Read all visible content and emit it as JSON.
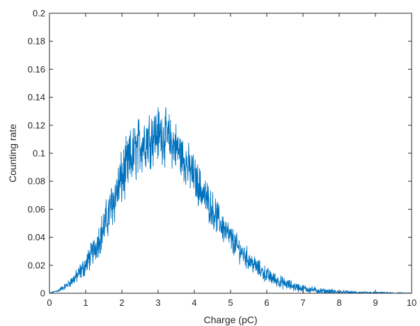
{
  "colors": {
    "series": "#0072bd",
    "axis": "#262626",
    "background": "#ffffff"
  },
  "chart_data": {
    "type": "line",
    "title": "",
    "xlabel": "Charge (pC)",
    "ylabel": "Counting rate",
    "xlim": [
      0,
      10
    ],
    "ylim": [
      0,
      0.2
    ],
    "xticks": [
      0,
      1,
      2,
      3,
      4,
      5,
      6,
      7,
      8,
      9,
      10
    ],
    "yticks": [
      0,
      0.02,
      0.04,
      0.06,
      0.08,
      0.1,
      0.12,
      0.14,
      0.16,
      0.18,
      0.2
    ],
    "xtick_labels": [
      "0",
      "1",
      "2",
      "3",
      "4",
      "5",
      "6",
      "7",
      "8",
      "9",
      "10"
    ],
    "ytick_labels": [
      "0",
      "0.02",
      "0.04",
      "0.06",
      "0.08",
      "0.1",
      "0.12",
      "0.14",
      "0.16",
      "0.18",
      "0.2"
    ],
    "grid": false,
    "box": true,
    "series": [
      {
        "x": [
          0,
          0.25,
          0.5,
          0.75,
          1,
          1.25,
          1.5,
          1.75,
          2,
          2.25,
          2.5,
          2.75,
          3,
          3.25,
          3.5,
          3.75,
          4,
          4.25,
          4.5,
          4.75,
          5,
          5.25,
          5.5,
          5.75,
          6,
          6.25,
          6.5,
          6.75,
          7,
          7.5,
          8,
          8.5,
          9,
          9.5,
          10
        ],
        "y": [
          0,
          0.002,
          0.006,
          0.012,
          0.02,
          0.032,
          0.047,
          0.065,
          0.082,
          0.096,
          0.106,
          0.112,
          0.114,
          0.111,
          0.104,
          0.094,
          0.083,
          0.071,
          0.06,
          0.049,
          0.039,
          0.031,
          0.024,
          0.018,
          0.013,
          0.0095,
          0.0068,
          0.0048,
          0.0034,
          0.0017,
          0.0008,
          0.0004,
          0.0002,
          0.0001,
          0
        ],
        "noise": [
          0,
          0.001,
          0.002,
          0.004,
          0.006,
          0.008,
          0.011,
          0.014,
          0.016,
          0.017,
          0.017,
          0.017,
          0.016,
          0.015,
          0.014,
          0.013,
          0.012,
          0.011,
          0.01,
          0.009,
          0.008,
          0.007,
          0.006,
          0.005,
          0.0045,
          0.0038,
          0.0032,
          0.0027,
          0.0022,
          0.0016,
          0.0012,
          0.0009,
          0.0007,
          0.0005,
          0.0003
        ]
      }
    ]
  }
}
